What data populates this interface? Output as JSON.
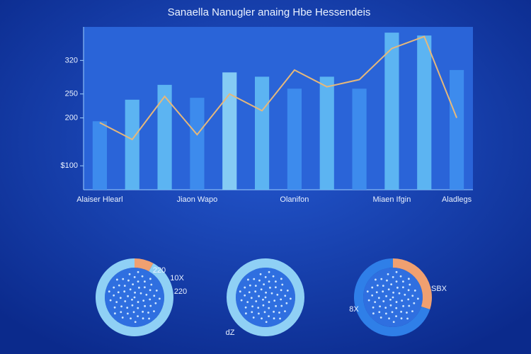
{
  "chart_data": [
    {
      "type": "bar",
      "title": "Sanaella Nanugler anaing Hbe Hessendeis",
      "categories": [
        "Alaiser Hlearl",
        null,
        null,
        "Jiaon Wapo",
        null,
        null,
        "Olanifon",
        null,
        null,
        "Miaen Ifgin",
        null,
        "Aladlegs"
      ],
      "series": [
        {
          "name": null,
          "kind": "bar",
          "colors": [
            "#3f8ff0",
            "#62bdf5",
            "#62bdf5",
            "#3f8ff0",
            "#8fd6f7",
            "#62bdf5",
            "#3f8ff0",
            "#62bdf5",
            "#3f8ff0",
            "#62bdf5",
            "#62bdf5",
            "#3f8ff0"
          ],
          "values": [
            193,
            238,
            269,
            242,
            295,
            286,
            261,
            286,
            261,
            378,
            372,
            300
          ]
        },
        {
          "name": null,
          "kind": "line",
          "color": "#e6b87a",
          "values": [
            190,
            155,
            245,
            165,
            250,
            215,
            300,
            265,
            280,
            345,
            370,
            200
          ]
        }
      ],
      "ylim": [
        50,
        390
      ],
      "yticks": [
        {
          "value": 100,
          "label": "$100"
        },
        200,
        250,
        320
      ]
    },
    {
      "type": "pie",
      "values": [
        8,
        92
      ],
      "colors": [
        "#f0a070",
        "#8fd0f5"
      ],
      "annotations": [
        "220",
        "10X",
        "220"
      ]
    },
    {
      "type": "pie",
      "values": [
        100
      ],
      "colors": [
        "#8fd0f5"
      ],
      "annotations": [
        "dZ"
      ]
    },
    {
      "type": "pie",
      "values": [
        30,
        70
      ],
      "colors": [
        "#f0a070",
        "#2f7fe8"
      ],
      "annotations": [
        "SBX",
        "8X"
      ]
    }
  ]
}
